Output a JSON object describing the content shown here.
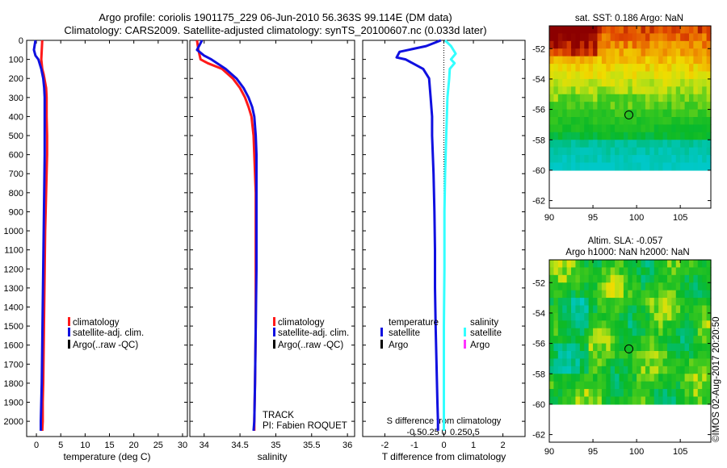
{
  "header": {
    "title_line1": "Argo profile: coriolis 1901175_229 06-Jun-2010 56.363S 99.114E (DM data)",
    "title_line2": "Climatology: CARS2009. Satellite-adjusted climatology: synTS_20100607.nc (0.033d later)"
  },
  "colors": {
    "climatology": "#ff1a1a",
    "satellite_adj": "#1010e0",
    "argo": "#000000",
    "satellite": "#33ffff",
    "argo_salinity": "#ff33ff"
  },
  "footer": {
    "stamp": "©IMOS 02-Aug-2017 20:20:50"
  },
  "track": {
    "line1": "TRACK",
    "line2": "PI: Fabien ROQUET"
  },
  "maps": {
    "sst_title": "sat. SST: 0.186 Argo: NaN",
    "sla_title1": "Altim. SLA: -0.057",
    "sla_title2": "Argo h1000: NaN h2000: NaN",
    "argo_marker": {
      "lon": 99.114,
      "lat": -56.363
    }
  },
  "chart_data": [
    {
      "type": "line",
      "name": "temperature-panel",
      "xlabel": "temperature (deg C)",
      "ylabel": "",
      "xlim": [
        -2,
        31
      ],
      "ylim": [
        2080,
        0
      ],
      "xticks": [
        "0",
        "5",
        "10",
        "15",
        "20",
        "25",
        "30"
      ],
      "yticks": [
        "0",
        "100",
        "200",
        "300",
        "400",
        "500",
        "600",
        "700",
        "800",
        "900",
        "1000",
        "1100",
        "1200",
        "1300",
        "1400",
        "1500",
        "1600",
        "1700",
        "1800",
        "1900",
        "2000"
      ],
      "legend": [
        "climatology",
        "satellite-adj. clim.",
        "Argo(..raw -QC)"
      ],
      "series": [
        {
          "name": "climatology",
          "color": "#ff1a1a",
          "x": [
            1.2,
            1.1,
            1.0,
            1.2,
            1.5,
            2.0,
            2.1,
            2.1,
            2.2,
            2.2,
            2.1,
            2.0,
            1.9,
            1.8,
            1.7,
            1.6,
            1.5,
            1.4,
            1.3,
            1.3,
            1.2
          ],
          "y": [
            0,
            50,
            100,
            150,
            180,
            250,
            300,
            400,
            500,
            600,
            700,
            800,
            900,
            1000,
            1200,
            1400,
            1600,
            1800,
            1900,
            2000,
            2050
          ]
        },
        {
          "name": "satellite-adj. clim.",
          "color": "#1010e0",
          "x": [
            -0.2,
            -0.5,
            -0.2,
            0.4,
            1.0,
            1.4,
            1.6,
            1.7,
            1.7,
            1.7,
            1.6,
            1.5,
            1.4,
            1.3,
            1.2,
            1.1,
            1.0,
            0.9,
            0.9
          ],
          "y": [
            0,
            50,
            80,
            100,
            150,
            200,
            250,
            300,
            400,
            600,
            800,
            1000,
            1200,
            1400,
            1600,
            1800,
            1900,
            2000,
            2050
          ]
        }
      ]
    },
    {
      "type": "line",
      "name": "salinity-panel",
      "xlabel": "salinity",
      "ylabel": "",
      "xlim": [
        33.8,
        36.1
      ],
      "ylim": [
        2080,
        0
      ],
      "xticks": [
        "34",
        "34.5",
        "35",
        "35.5",
        "36"
      ],
      "yticks": [],
      "legend": [
        "climatology",
        "satellite-adj. clim.",
        "Argo(..raw -QC)"
      ],
      "series": [
        {
          "name": "climatology",
          "color": "#ff1a1a",
          "x": [
            33.9,
            33.92,
            33.95,
            34.05,
            34.25,
            34.4,
            34.5,
            34.57,
            34.62,
            34.66,
            34.69,
            34.7,
            34.71,
            34.72,
            34.72,
            34.72,
            34.72,
            34.71,
            34.7,
            34.7
          ],
          "y": [
            0,
            50,
            100,
            120,
            150,
            200,
            250,
            300,
            350,
            400,
            500,
            600,
            700,
            800,
            1000,
            1200,
            1500,
            1800,
            2000,
            2050
          ]
        },
        {
          "name": "satellite-adj. clim.",
          "color": "#1010e0",
          "x": [
            33.97,
            33.9,
            34.0,
            34.1,
            34.3,
            34.45,
            34.55,
            34.62,
            34.67,
            34.7,
            34.72,
            34.73,
            34.73,
            34.73,
            34.73,
            34.72,
            34.71,
            34.7,
            34.69
          ],
          "y": [
            0,
            50,
            80,
            100,
            150,
            200,
            250,
            300,
            350,
            400,
            500,
            600,
            800,
            1000,
            1200,
            1500,
            1800,
            2000,
            2050
          ]
        }
      ]
    },
    {
      "type": "line",
      "name": "difference-panel",
      "xlabel": "T difference from climatology",
      "x2label": "S difference from climatology",
      "ylabel": "",
      "xlim": [
        -2.75,
        2.75
      ],
      "ylim": [
        2080,
        0
      ],
      "xticks": [
        "-2",
        "-1",
        "0",
        "1",
        "2"
      ],
      "x2ticks": [
        "-0.5",
        "-0.25",
        "0",
        "0.25",
        "0.5"
      ],
      "yticks": [],
      "legend_temperature_title": "temperature",
      "legend_salinity_title": "salinity",
      "legend": [
        "satellite",
        "Argo",
        "satellite",
        "Argo"
      ],
      "series": [
        {
          "name": "temperature satellite",
          "color": "#1010e0",
          "x": [
            -0.1,
            -0.6,
            -1.5,
            -1.6,
            -1.3,
            -0.7,
            -0.5,
            -0.45,
            -0.4,
            -0.4,
            -0.35,
            -0.32,
            -0.3,
            -0.3,
            -0.28,
            -0.25,
            -0.22,
            -0.2,
            -0.2
          ],
          "y": [
            0,
            30,
            60,
            90,
            100,
            150,
            200,
            300,
            400,
            500,
            700,
            900,
            1100,
            1300,
            1500,
            1700,
            1900,
            2000,
            2050
          ]
        },
        {
          "name": "salinity satellite",
          "color": "#33ffff",
          "x": [
            0.02,
            0.12,
            0.2,
            0.12,
            0.18,
            0.1,
            0.09,
            0.06,
            0.05,
            0.04,
            0.02,
            0.01,
            0.01,
            0.0,
            0.0,
            0.0,
            0.0
          ],
          "y": [
            0,
            30,
            70,
            100,
            120,
            150,
            200,
            300,
            400,
            500,
            700,
            900,
            1200,
            1500,
            1800,
            2000,
            2050
          ]
        }
      ]
    },
    {
      "type": "heatmap",
      "name": "sst-map",
      "title": "sat. SST: 0.186 Argo: NaN",
      "xlim": [
        90,
        108.5
      ],
      "ylim": [
        -62.5,
        -50.5
      ],
      "xticks": [
        "90",
        "95",
        "100",
        "105"
      ],
      "yticks": [
        "-52",
        "-54",
        "-56",
        "-58",
        "-60",
        "-62"
      ],
      "data_valid_lat_max": -50.5,
      "data_valid_lat_min": -60
    },
    {
      "type": "heatmap",
      "name": "sla-map",
      "title": "Altim. SLA: -0.057",
      "xlim": [
        90,
        108.5
      ],
      "ylim": [
        -62.5,
        -50.5
      ],
      "xticks": [
        "90",
        "95",
        "100",
        "105"
      ],
      "yticks": [
        "-52",
        "-54",
        "-56",
        "-58",
        "-60",
        "-62"
      ],
      "data_valid_lat_max": -50.5,
      "data_valid_lat_min": -60
    }
  ]
}
